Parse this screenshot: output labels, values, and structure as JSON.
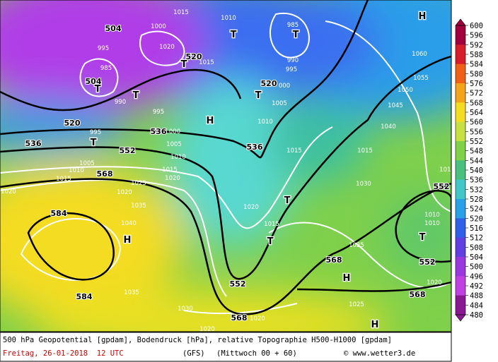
{
  "map": {
    "labels": [
      "H",
      "T",
      "T",
      "T",
      "T",
      "T",
      "T",
      "H",
      "T",
      "T",
      "T",
      "T",
      "H",
      "H",
      "H",
      "504",
      "520",
      "504",
      "520",
      "520",
      "536",
      "536",
      "552",
      "536",
      "568",
      "552",
      "584",
      "584",
      "552",
      "568",
      "568",
      "568",
      "552",
      "1015",
      "1010",
      "985",
      "1000",
      "1020",
      "995",
      "985",
      "1015",
      "990",
      "995",
      "1060",
      "1055",
      "1050",
      "1045",
      "1040",
      "000",
      "990",
      "1005",
      "995",
      "1010",
      "000",
      "995",
      "1005",
      "1010",
      "1015",
      "1015",
      "1005",
      "1010",
      "1015",
      "1020",
      "1015",
      "1030",
      "1020",
      "1025",
      "1020",
      "1035",
      "1040",
      "1020",
      "1015",
      "1010",
      "1010",
      "1025",
      "1035",
      "1030",
      "1025",
      "1020",
      "1020",
      "1020",
      "1010"
    ]
  },
  "legend": {
    "values": [
      600,
      596,
      592,
      588,
      584,
      580,
      576,
      572,
      568,
      564,
      560,
      556,
      552,
      548,
      544,
      540,
      536,
      532,
      528,
      524,
      520,
      516,
      512,
      508,
      504,
      500,
      496,
      492,
      488,
      484,
      480
    ]
  },
  "footer": {
    "line1": "500 hPa Geopotential [gpdam], Bodendruck [hPa], relative Topographie H500-H1000 [gpdam]",
    "date": "Freitag, 26-01-2018  12 UTC",
    "model": "(GFS)",
    "run": "(Mittwoch 00 + 60)",
    "credit": "© www.wetter3.de"
  }
}
